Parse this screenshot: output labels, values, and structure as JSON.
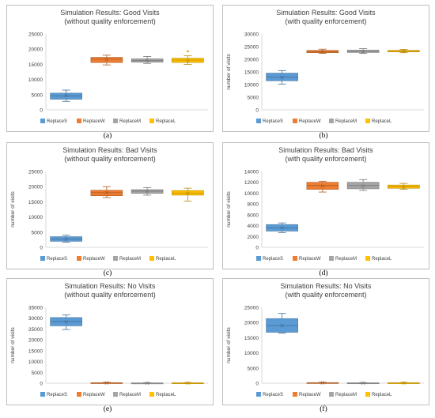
{
  "colors": {
    "ReplaceS": "#5b9bd5",
    "ReplaceW": "#ed7d31",
    "ReplaceM": "#a5a5a5",
    "ReplaceL": "#ffc000",
    "frame": "#bfbfbf",
    "grid": "#d9d9d9",
    "text": "#404040"
  },
  "captions": [
    "(a)",
    "(b)",
    "(c)",
    "(d)",
    "(e)",
    "(f)"
  ],
  "chart_data": [
    {
      "type": "box",
      "title": "Simulation Results: Good Visits",
      "subtitle": "(without quality enforcement)",
      "ylabel": "",
      "ylim": [
        0,
        25000
      ],
      "yticks": [
        0,
        5000,
        10000,
        15000,
        20000,
        25000
      ],
      "grid": false,
      "legend": "bottom",
      "categories": [
        "ReplaceS",
        "ReplaceW",
        "ReplaceM",
        "ReplaceL"
      ],
      "series": [
        {
          "name": "ReplaceS",
          "min": 2800,
          "q1": 3500,
          "median": 4600,
          "mean": 4700,
          "q3": 5500,
          "max": 6500,
          "outliers": []
        },
        {
          "name": "ReplaceW",
          "min": 14800,
          "q1": 15600,
          "median": 16700,
          "mean": 16600,
          "q3": 17300,
          "max": 18000,
          "outliers": []
        },
        {
          "name": "ReplaceM",
          "min": 15300,
          "q1": 15700,
          "median": 16300,
          "mean": 16300,
          "q3": 16800,
          "max": 17600,
          "outliers": []
        },
        {
          "name": "ReplaceL",
          "min": 15000,
          "q1": 15600,
          "median": 16400,
          "mean": 16200,
          "q3": 17000,
          "max": 17800,
          "outliers": [
            19300
          ]
        }
      ]
    },
    {
      "type": "box",
      "title": "Simulation Results: Good Visits",
      "subtitle": "(with quality enforcement)",
      "ylabel": "number of visits",
      "ylim": [
        0,
        30000
      ],
      "yticks": [
        0,
        5000,
        10000,
        15000,
        20000,
        25000,
        30000
      ],
      "grid": false,
      "legend": "bottom",
      "categories": [
        "ReplaceS",
        "ReplaceW",
        "ReplaceM",
        "ReplaceL"
      ],
      "series": [
        {
          "name": "ReplaceS",
          "min": 10200,
          "q1": 11500,
          "median": 13000,
          "mean": 12800,
          "q3": 14500,
          "max": 15500,
          "outliers": []
        },
        {
          "name": "ReplaceW",
          "min": 22300,
          "q1": 22600,
          "median": 23000,
          "mean": 23000,
          "q3": 23500,
          "max": 24000,
          "outliers": []
        },
        {
          "name": "ReplaceM",
          "min": 22300,
          "q1": 22700,
          "median": 23100,
          "mean": 23000,
          "q3": 23600,
          "max": 24200,
          "outliers": []
        },
        {
          "name": "ReplaceL",
          "min": 22600,
          "q1": 22900,
          "median": 23200,
          "mean": 23200,
          "q3": 23500,
          "max": 23900,
          "outliers": []
        }
      ]
    },
    {
      "type": "box",
      "title": "Simulation Results: Bad Visits",
      "subtitle": "(without quality enforcement)",
      "ylabel": "number of visits",
      "ylim": [
        0,
        25000
      ],
      "yticks": [
        0,
        5000,
        10000,
        15000,
        20000,
        25000
      ],
      "grid": false,
      "legend": "bottom",
      "categories": [
        "ReplaceS",
        "ReplaceW",
        "ReplaceM",
        "ReplaceL"
      ],
      "series": [
        {
          "name": "ReplaceS",
          "min": 1700,
          "q1": 2000,
          "median": 2700,
          "mean": 2700,
          "q3": 3500,
          "max": 4000,
          "outliers": []
        },
        {
          "name": "ReplaceW",
          "min": 16400,
          "q1": 17000,
          "median": 18000,
          "mean": 18000,
          "q3": 18800,
          "max": 20000,
          "outliers": []
        },
        {
          "name": "ReplaceM",
          "min": 17200,
          "q1": 17800,
          "median": 18500,
          "mean": 18400,
          "q3": 19000,
          "max": 19700,
          "outliers": []
        },
        {
          "name": "ReplaceL",
          "min": 15200,
          "q1": 17200,
          "median": 17900,
          "mean": 17800,
          "q3": 18700,
          "max": 19500,
          "outliers": []
        }
      ]
    },
    {
      "type": "box",
      "title": "Simulation Results: Bad Visits",
      "subtitle": "(with quality enforcement)",
      "ylabel": "number of visits",
      "ylim": [
        0,
        14000
      ],
      "yticks": [
        0,
        2000,
        4000,
        6000,
        8000,
        10000,
        12000,
        14000
      ],
      "grid": false,
      "legend": "bottom",
      "categories": [
        "ReplaceS",
        "ReplaceW",
        "ReplaceM",
        "ReplaceL"
      ],
      "series": [
        {
          "name": "ReplaceS",
          "min": 2700,
          "q1": 3000,
          "median": 3600,
          "mean": 3600,
          "q3": 4200,
          "max": 4500,
          "outliers": []
        },
        {
          "name": "ReplaceW",
          "min": 10200,
          "q1": 10700,
          "median": 11400,
          "mean": 11300,
          "q3": 12000,
          "max": 12200,
          "outliers": []
        },
        {
          "name": "ReplaceM",
          "min": 10500,
          "q1": 10800,
          "median": 11400,
          "mean": 11300,
          "q3": 12000,
          "max": 12500,
          "outliers": []
        },
        {
          "name": "ReplaceL",
          "min": 10700,
          "q1": 10900,
          "median": 11200,
          "mean": 11100,
          "q3": 11500,
          "max": 11800,
          "outliers": []
        }
      ]
    },
    {
      "type": "box",
      "title": "Simulation Results: No Visits",
      "subtitle": "(without quality enforcement)",
      "ylabel": "number of visits",
      "ylim": [
        0,
        35000
      ],
      "yticks": [
        0,
        5000,
        10000,
        15000,
        20000,
        25000,
        30000,
        35000
      ],
      "grid": false,
      "legend": "bottom",
      "categories": [
        "ReplaceS",
        "ReplaceW",
        "ReplaceM",
        "ReplaceL"
      ],
      "series": [
        {
          "name": "ReplaceS",
          "min": 24800,
          "q1": 26500,
          "median": 28500,
          "mean": 28300,
          "q3": 30300,
          "max": 31500,
          "outliers": []
        },
        {
          "name": "ReplaceW",
          "min": 0,
          "q1": 80,
          "median": 150,
          "mean": 150,
          "q3": 250,
          "max": 400,
          "outliers": []
        },
        {
          "name": "ReplaceM",
          "min": 0,
          "q1": 30,
          "median": 80,
          "mean": 80,
          "q3": 130,
          "max": 250,
          "outliers": []
        },
        {
          "name": "ReplaceL",
          "min": 0,
          "q1": 50,
          "median": 100,
          "mean": 100,
          "q3": 180,
          "max": 300,
          "outliers": []
        }
      ]
    },
    {
      "type": "box",
      "title": "Simulation Results: No Visits",
      "subtitle": "(with quality enforcement)",
      "ylabel": "number of visits",
      "ylim": [
        0,
        25000
      ],
      "yticks": [
        0,
        5000,
        10000,
        15000,
        20000,
        25000
      ],
      "grid": false,
      "legend": "bottom",
      "categories": [
        "ReplaceS",
        "ReplaceW",
        "ReplaceM",
        "ReplaceL"
      ],
      "series": [
        {
          "name": "ReplaceS",
          "min": 16500,
          "q1": 16800,
          "median": 19000,
          "mean": 19000,
          "q3": 21300,
          "max": 23000,
          "outliers": []
        },
        {
          "name": "ReplaceW",
          "min": 0,
          "q1": 50,
          "median": 120,
          "mean": 120,
          "q3": 200,
          "max": 300,
          "outliers": []
        },
        {
          "name": "ReplaceM",
          "min": 0,
          "q1": 30,
          "median": 70,
          "mean": 70,
          "q3": 120,
          "max": 200,
          "outliers": []
        },
        {
          "name": "ReplaceL",
          "min": 0,
          "q1": 40,
          "median": 90,
          "mean": 90,
          "q3": 150,
          "max": 250,
          "outliers": []
        }
      ]
    }
  ]
}
